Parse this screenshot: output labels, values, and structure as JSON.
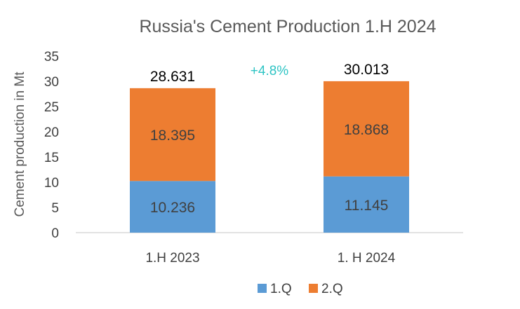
{
  "chart_data": {
    "type": "bar",
    "stacked": true,
    "title": "Russia's Cement Production 1.H 2024",
    "xlabel": "",
    "ylabel": "Cement production in Mt",
    "categories": [
      "1.H 2023",
      "1. H 2024"
    ],
    "series": [
      {
        "name": "1.Q",
        "values": [
          10.236,
          11.145
        ],
        "labels": [
          "10.236",
          "11.145"
        ],
        "color": "#5b9bd5"
      },
      {
        "name": "2.Q",
        "values": [
          18.395,
          18.868
        ],
        "labels": [
          "18.395",
          "18.868"
        ],
        "color": "#ed7d31"
      }
    ],
    "totals": [
      "28.631",
      "30.013"
    ],
    "annotation": {
      "text": "+4.8%",
      "color": "#2ec4c4"
    },
    "ylim": [
      0,
      35
    ],
    "yticks": [
      "0",
      "5",
      "10",
      "15",
      "20",
      "25",
      "30",
      "35"
    ],
    "grid": false,
    "legend": "bottom-center"
  }
}
